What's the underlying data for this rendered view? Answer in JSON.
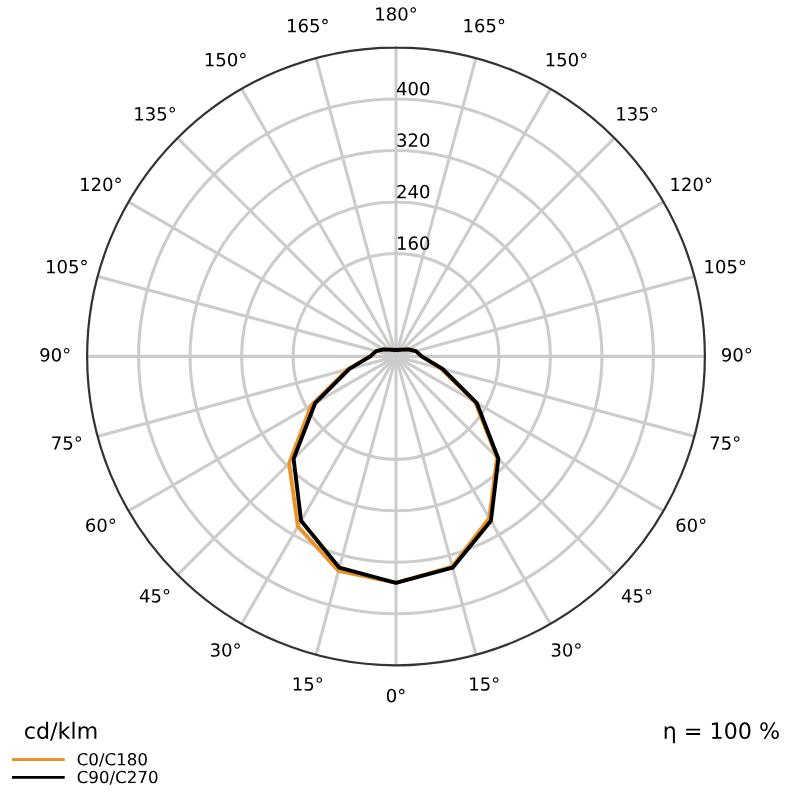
{
  "chart_data": {
    "type": "radar",
    "categories": [
      "180°",
      "165°",
      "150°",
      "135°",
      "120°",
      "105°",
      "90°",
      "75°",
      "60°",
      "45°",
      "30°",
      "15°",
      "0°",
      "15°",
      "30°",
      "45°",
      "60°",
      "75°",
      "90°",
      "105°",
      "120°",
      "135°",
      "150°",
      "165°"
    ],
    "series": [
      {
        "name": "C0/C180",
        "color": "#e8942a",
        "values": [
          10,
          10,
          12,
          15,
          22,
          32,
          40,
          72,
          142,
          222,
          290,
          338,
          352,
          345,
          305,
          235,
          152,
          78,
          40,
          32,
          22,
          15,
          12,
          10
        ]
      },
      {
        "name": "C90/C270",
        "color": "#000000",
        "values": [
          10,
          10,
          12,
          15,
          22,
          32,
          40,
          75,
          145,
          225,
          295,
          340,
          352,
          340,
          295,
          225,
          145,
          75,
          40,
          32,
          22,
          15,
          12,
          10
        ]
      }
    ],
    "ylim": [
      0,
      480
    ],
    "yticks": [
      160,
      240,
      320,
      400
    ],
    "grid": true,
    "legend": "bottom left",
    "annotations": [
      "cd/klm",
      "η = 100 %"
    ]
  }
}
